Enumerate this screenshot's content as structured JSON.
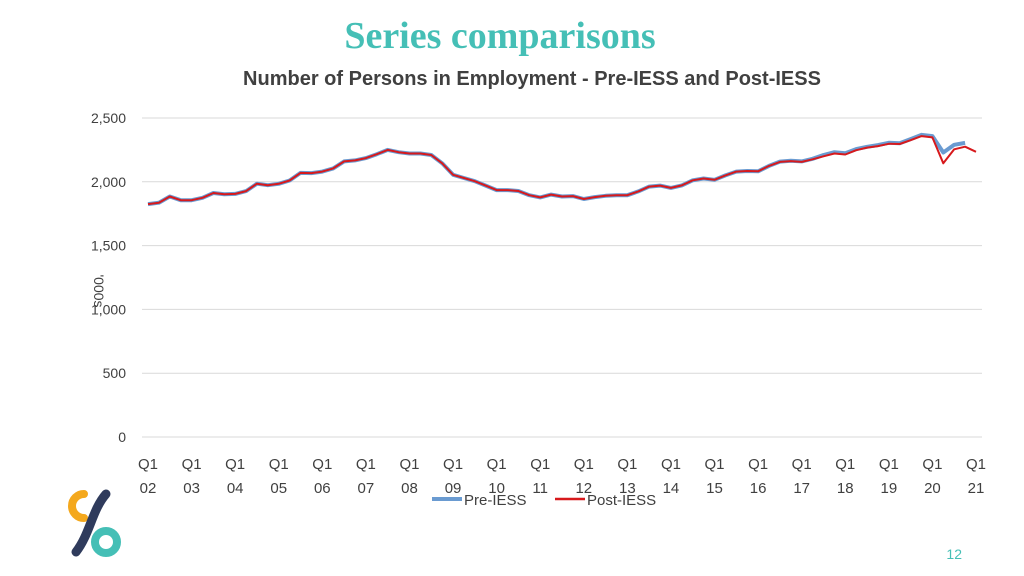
{
  "slide": {
    "title": "Series comparisons",
    "page_number": "12"
  },
  "colors": {
    "title": "#45BFB6",
    "pre_iess": "#6A9BD1",
    "post_iess": "#D7191C",
    "grid": "#D9D9D9",
    "text": "#404040",
    "logo_orange": "#F4A81D",
    "logo_teal": "#45BFB6",
    "logo_navy": "#2F3B5C"
  },
  "chart_data": {
    "type": "line",
    "title": "Number of Persons in Employment - Pre-IESS and Post-IESS",
    "ylabel": "'000s",
    "ylim": [
      0,
      2500
    ],
    "yticks": [
      0,
      500,
      1000,
      1500,
      2000,
      2500
    ],
    "ytick_labels": [
      "0",
      "500",
      "1,000",
      "1,500",
      "2,000",
      "2,500"
    ],
    "grid": true,
    "legend_position": "bottom",
    "x_tick_labels": [
      [
        "Q1",
        "02"
      ],
      [
        "Q1",
        "03"
      ],
      [
        "Q1",
        "04"
      ],
      [
        "Q1",
        "05"
      ],
      [
        "Q1",
        "06"
      ],
      [
        "Q1",
        "07"
      ],
      [
        "Q1",
        "08"
      ],
      [
        "Q1",
        "09"
      ],
      [
        "Q1",
        "10"
      ],
      [
        "Q1",
        "11"
      ],
      [
        "Q1",
        "12"
      ],
      [
        "Q1",
        "13"
      ],
      [
        "Q1",
        "14"
      ],
      [
        "Q1",
        "15"
      ],
      [
        "Q1",
        "16"
      ],
      [
        "Q1",
        "17"
      ],
      [
        "Q1",
        "18"
      ],
      [
        "Q1",
        "19"
      ],
      [
        "Q1",
        "20"
      ],
      [
        "Q1",
        "21"
      ]
    ],
    "series": [
      {
        "name": "Pre-IESS",
        "values": [
          1825,
          1836,
          1885,
          1856,
          1856,
          1875,
          1912,
          1903,
          1905,
          1927,
          1985,
          1973,
          1984,
          2010,
          2070,
          2068,
          2080,
          2105,
          2160,
          2168,
          2186,
          2216,
          2250,
          2232,
          2222,
          2222,
          2210,
          2145,
          2055,
          2030,
          2005,
          1970,
          1935,
          1935,
          1928,
          1895,
          1878,
          1900,
          1885,
          1888,
          1865,
          1880,
          1890,
          1895,
          1895,
          1925,
          1962,
          1970,
          1952,
          1972,
          2012,
          2026,
          2016,
          2050,
          2080,
          2085,
          2082,
          2125,
          2158,
          2165,
          2160,
          2180,
          2210,
          2232,
          2224,
          2256,
          2274,
          2288,
          2306,
          2302,
          2335,
          2368,
          2358,
          2230,
          2290,
          2305
        ]
      },
      {
        "name": "Post-IESS",
        "values": [
          1825,
          1836,
          1885,
          1856,
          1856,
          1875,
          1912,
          1903,
          1905,
          1927,
          1985,
          1973,
          1984,
          2010,
          2070,
          2068,
          2080,
          2105,
          2160,
          2168,
          2186,
          2216,
          2250,
          2232,
          2222,
          2222,
          2210,
          2145,
          2055,
          2030,
          2005,
          1970,
          1935,
          1935,
          1928,
          1895,
          1878,
          1900,
          1885,
          1888,
          1865,
          1880,
          1890,
          1895,
          1895,
          1925,
          1962,
          1970,
          1952,
          1972,
          2012,
          2026,
          2016,
          2050,
          2080,
          2085,
          2082,
          2125,
          2156,
          2162,
          2156,
          2176,
          2200,
          2222,
          2214,
          2248,
          2268,
          2280,
          2298,
          2296,
          2326,
          2358,
          2348,
          2145,
          2255,
          2275,
          2235
        ]
      }
    ]
  }
}
